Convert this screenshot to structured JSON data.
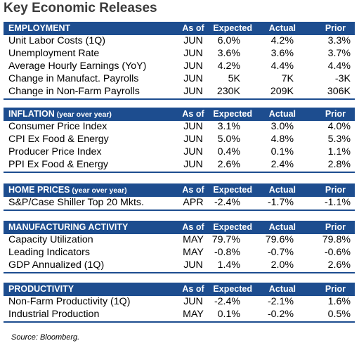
{
  "title": "Key Economic Releases",
  "columns": {
    "as_of": "As of",
    "expected": "Expected",
    "actual": "Actual",
    "prior": "Prior"
  },
  "sections": [
    {
      "name": "EMPLOYMENT",
      "sub": "",
      "rows": [
        {
          "name": "Unit Labor Costs (1Q)",
          "as_of": "JUN",
          "expected": "6.0%",
          "actual": "4.2%",
          "prior": "3.3%"
        },
        {
          "name": "Unemployment Rate",
          "as_of": "JUN",
          "expected": "3.6%",
          "actual": "3.6%",
          "prior": "3.7%"
        },
        {
          "name": "Average Hourly Earnings (YoY)",
          "as_of": "JUN",
          "expected": "4.2%",
          "actual": "4.4%",
          "prior": "4.4%"
        },
        {
          "name": "Change in Manufact. Payrolls",
          "as_of": "JUN",
          "expected": "5K",
          "actual": "7K",
          "prior": "-3K"
        },
        {
          "name": "Change in Non-Farm Payrolls",
          "as_of": "JUN",
          "expected": "230K",
          "actual": "209K",
          "prior": "306K"
        }
      ]
    },
    {
      "name": "INFLATION",
      "sub": " (year over year)",
      "rows": [
        {
          "name": "Consumer Price Index",
          "as_of": "JUN",
          "expected": "3.1%",
          "actual": "3.0%",
          "prior": "4.0%"
        },
        {
          "name": "CPI Ex Food & Energy",
          "as_of": "JUN",
          "expected": "5.0%",
          "actual": "4.8%",
          "prior": "5.3%"
        },
        {
          "name": "Producer Price Index",
          "as_of": "JUN",
          "expected": "0.4%",
          "actual": "0.1%",
          "prior": "1.1%"
        },
        {
          "name": "PPI Ex Food & Energy",
          "as_of": "JUN",
          "expected": "2.6%",
          "actual": "2.4%",
          "prior": "2.8%"
        }
      ]
    },
    {
      "name": "HOME PRICES",
      "sub": " (year over year)",
      "rows": [
        {
          "name": "S&P/Case Shiller Top 20 Mkts.",
          "as_of": "APR",
          "expected": "-2.4%",
          "actual": "-1.7%",
          "prior": "-1.1%"
        }
      ]
    },
    {
      "name": "MANUFACTURING ACTIVITY",
      "sub": "",
      "rows": [
        {
          "name": "Capacity Utilization",
          "as_of": "MAY",
          "expected": "79.7%",
          "actual": "79.6%",
          "prior": "79.8%"
        },
        {
          "name": "Leading Indicators",
          "as_of": "MAY",
          "expected": "-0.8%",
          "actual": "-0.7%",
          "prior": "-0.6%"
        },
        {
          "name": "GDP Annualized (1Q)",
          "as_of": "JUN",
          "expected": "1.4%",
          "actual": "2.0%",
          "prior": "2.6%"
        }
      ]
    },
    {
      "name": "PRODUCTIVITY",
      "sub": "",
      "rows": [
        {
          "name": "Non-Farm Productivity (1Q)",
          "as_of": "JUN",
          "expected": "-2.4%",
          "actual": "-2.1%",
          "prior": "1.6%"
        },
        {
          "name": "Industrial Production",
          "as_of": "MAY",
          "expected": "0.1%",
          "actual": "-0.2%",
          "prior": "0.5%"
        }
      ]
    }
  ],
  "source": "Source: Bloomberg.",
  "colors": {
    "header_bg": "#1d4d8f",
    "header_text": "#ffffff",
    "title": "#3a3a3a"
  }
}
